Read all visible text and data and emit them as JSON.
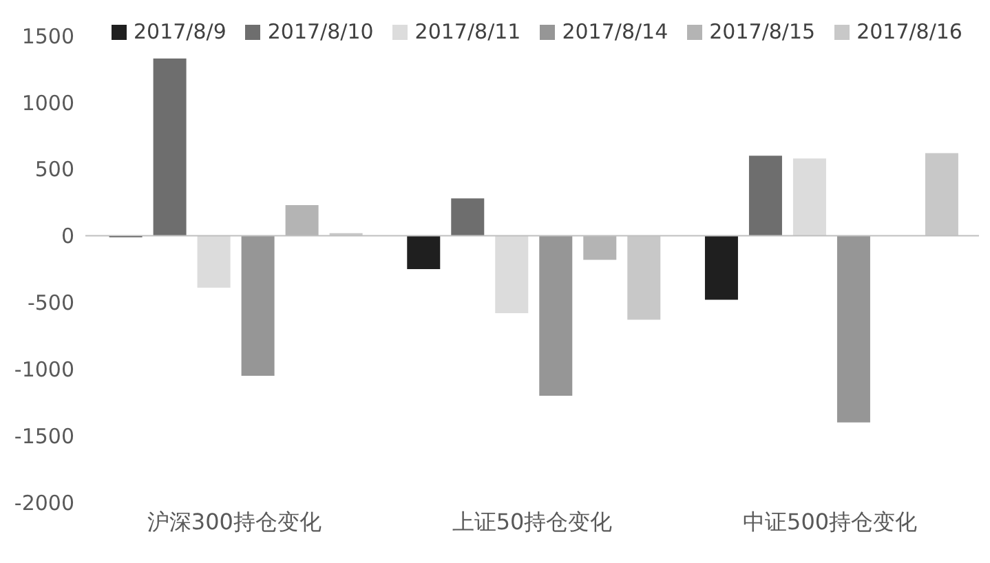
{
  "chart_data": {
    "type": "bar",
    "categories": [
      "沪深300持仓变化",
      "上证50持仓变化",
      "中证500持仓变化"
    ],
    "series": [
      {
        "name": "2017/8/9",
        "color": "#1f1f1f",
        "values": [
          -10,
          -250,
          -480
        ]
      },
      {
        "name": "2017/8/10",
        "color": "#6e6e6e",
        "values": [
          1330,
          280,
          600
        ]
      },
      {
        "name": "2017/8/11",
        "color": "#dcdcdc",
        "values": [
          -390,
          -580,
          580
        ]
      },
      {
        "name": "2017/8/14",
        "color": "#969696",
        "values": [
          -1050,
          -1200,
          -1400
        ]
      },
      {
        "name": "2017/8/15",
        "color": "#b4b4b4",
        "values": [
          230,
          -180,
          0
        ]
      },
      {
        "name": "2017/8/16",
        "color": "#c8c8c8",
        "values": [
          20,
          -630,
          620
        ]
      }
    ],
    "ylim": [
      -2000,
      1500
    ],
    "yticks": [
      -2000,
      -1500,
      -1000,
      -500,
      0,
      500,
      1000,
      1500
    ],
    "grid": false,
    "legend": "top",
    "ref_lines": [
      {
        "axis": "y",
        "value": 0,
        "color": "#bfbfbf"
      }
    ]
  }
}
